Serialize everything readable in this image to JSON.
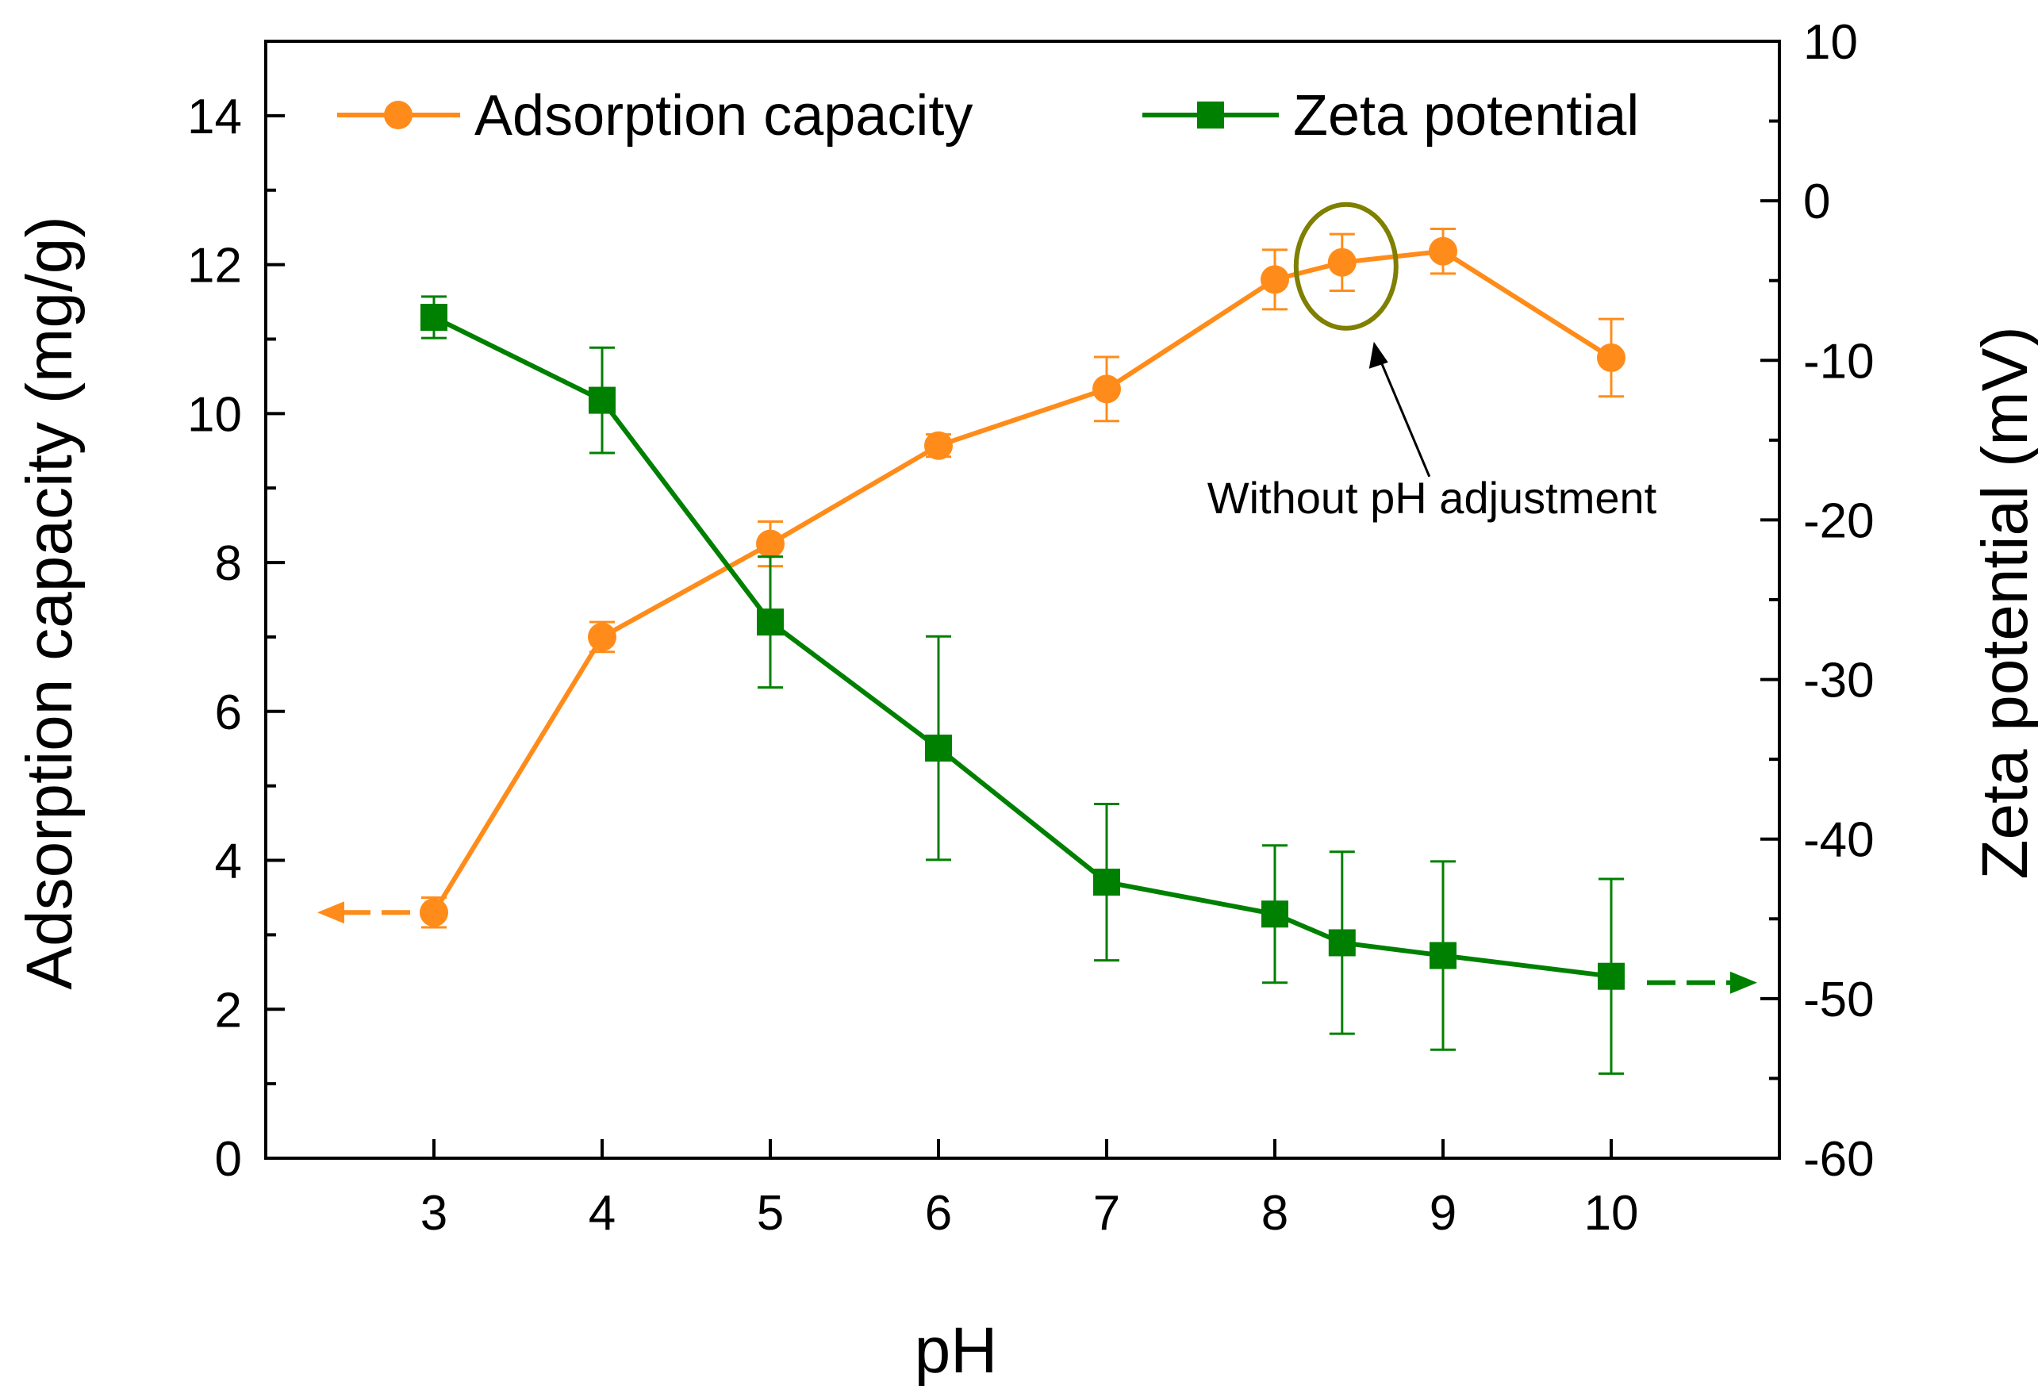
{
  "chart_data": {
    "type": "line",
    "title": "",
    "xlabel": "pH",
    "ylabel_left": "Adsorption capacity (mg/g)",
    "ylabel_right": "Zeta potential (mV)",
    "xlim": [
      2,
      11
    ],
    "ylim_left": [
      0,
      15
    ],
    "ylim_right": [
      -60,
      10
    ],
    "x_ticks": [
      3,
      4,
      5,
      6,
      7,
      8,
      9,
      10
    ],
    "y_left_ticks": [
      0,
      2,
      4,
      6,
      8,
      10,
      12,
      14
    ],
    "y_right_ticks": [
      -60,
      -50,
      -40,
      -30,
      -20,
      -10,
      0,
      10
    ],
    "x_tick_labels": [
      "3",
      "4",
      "5",
      "6",
      "7",
      "8",
      "9",
      "10"
    ],
    "y_left_tick_labels": [
      "0",
      "2",
      "4",
      "6",
      "8",
      "10",
      "12",
      "14"
    ],
    "y_right_tick_labels": [
      "-60",
      "-50",
      "-40",
      "-30",
      "-20",
      "-10",
      "0",
      "10"
    ],
    "series": [
      {
        "name": "Adsorption capacity",
        "axis": "left",
        "marker": "circle",
        "color": "#ff8c1a",
        "x": [
          3,
          4,
          5,
          6,
          7,
          8,
          8.4,
          9,
          10
        ],
        "y": [
          3.3,
          7.0,
          8.25,
          9.57,
          10.33,
          11.8,
          12.03,
          12.18,
          10.75
        ],
        "err": [
          0.2,
          0.2,
          0.3,
          0.15,
          0.43,
          0.4,
          0.38,
          0.3,
          0.52
        ]
      },
      {
        "name": "Zeta potential",
        "axis": "right",
        "marker": "square",
        "color": "#008000",
        "x": [
          3,
          4,
          5,
          6,
          7,
          8,
          8.4,
          9,
          10
        ],
        "y": [
          -7.3,
          -12.5,
          -26.4,
          -34.3,
          -42.7,
          -44.7,
          -46.5,
          -47.3,
          -48.6
        ],
        "err": [
          1.3,
          3.3,
          4.1,
          7.0,
          4.9,
          4.3,
          5.7,
          5.9,
          6.1
        ]
      }
    ],
    "legend_position": "top",
    "annotations": [
      {
        "text": "Without pH adjustment",
        "target_x": 8.4,
        "target_series": "Adsorption capacity"
      }
    ],
    "annotation_circle_color": "#7f7f00"
  }
}
